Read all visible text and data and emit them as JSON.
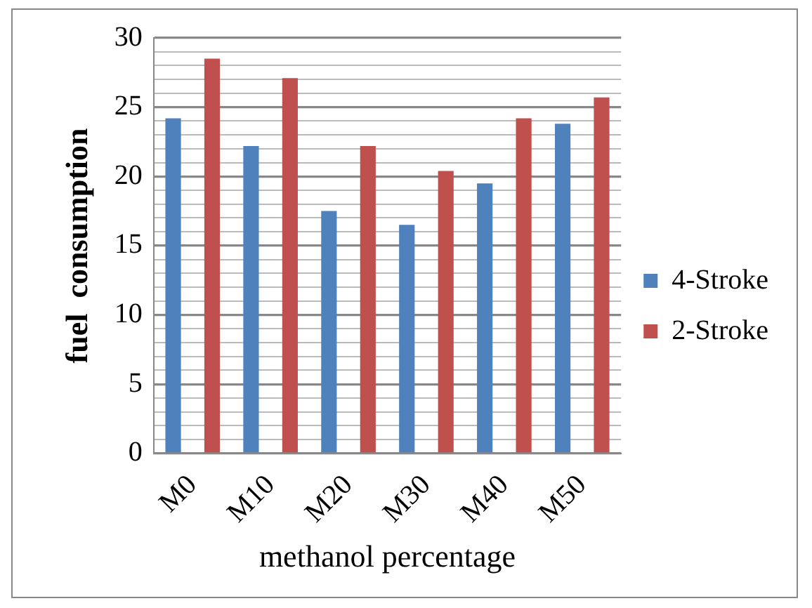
{
  "chart_data": {
    "type": "bar",
    "xlabel": "methanol percentage",
    "ylabel": "fuel  consumption",
    "categories": [
      "M0",
      "M10",
      "M20",
      "M30",
      "M40",
      "M50"
    ],
    "series": [
      {
        "name": "4-Stroke",
        "color": "#4f81bd",
        "values": [
          24.2,
          22.2,
          17.5,
          16.5,
          19.5,
          23.8
        ]
      },
      {
        "name": "2-Stroke",
        "color": "#c0504d",
        "values": [
          28.5,
          27.1,
          22.2,
          20.4,
          24.2,
          25.7
        ]
      }
    ],
    "ylim": [
      0,
      30
    ],
    "yticks": [
      0,
      {
        "value": 1,
        "label": null
      },
      {
        "value": 2,
        "label": null
      },
      {
        "value": 3,
        "label": null
      },
      {
        "value": 4,
        "label": null
      },
      5,
      {
        "value": 6,
        "label": null
      },
      {
        "value": 7,
        "label": null
      },
      {
        "value": 8,
        "label": null
      },
      {
        "value": 9,
        "label": null
      },
      10,
      {
        "value": 11,
        "label": null
      },
      {
        "value": 12,
        "label": null
      },
      {
        "value": 13,
        "label": null
      },
      {
        "value": 14,
        "label": null
      },
      15,
      {
        "value": 16,
        "label": null
      },
      {
        "value": 17,
        "label": null
      },
      {
        "value": 18,
        "label": null
      },
      {
        "value": 19,
        "label": null
      },
      20,
      {
        "value": 21,
        "label": null
      },
      {
        "value": 22,
        "label": null
      },
      {
        "value": 23,
        "label": null
      },
      {
        "value": 24,
        "label": null
      },
      25,
      {
        "value": 26,
        "label": null
      },
      {
        "value": 27,
        "label": null
      },
      {
        "value": 28,
        "label": null
      },
      {
        "value": 29,
        "label": null
      },
      30
    ],
    "grid": "y",
    "legend": "right"
  }
}
